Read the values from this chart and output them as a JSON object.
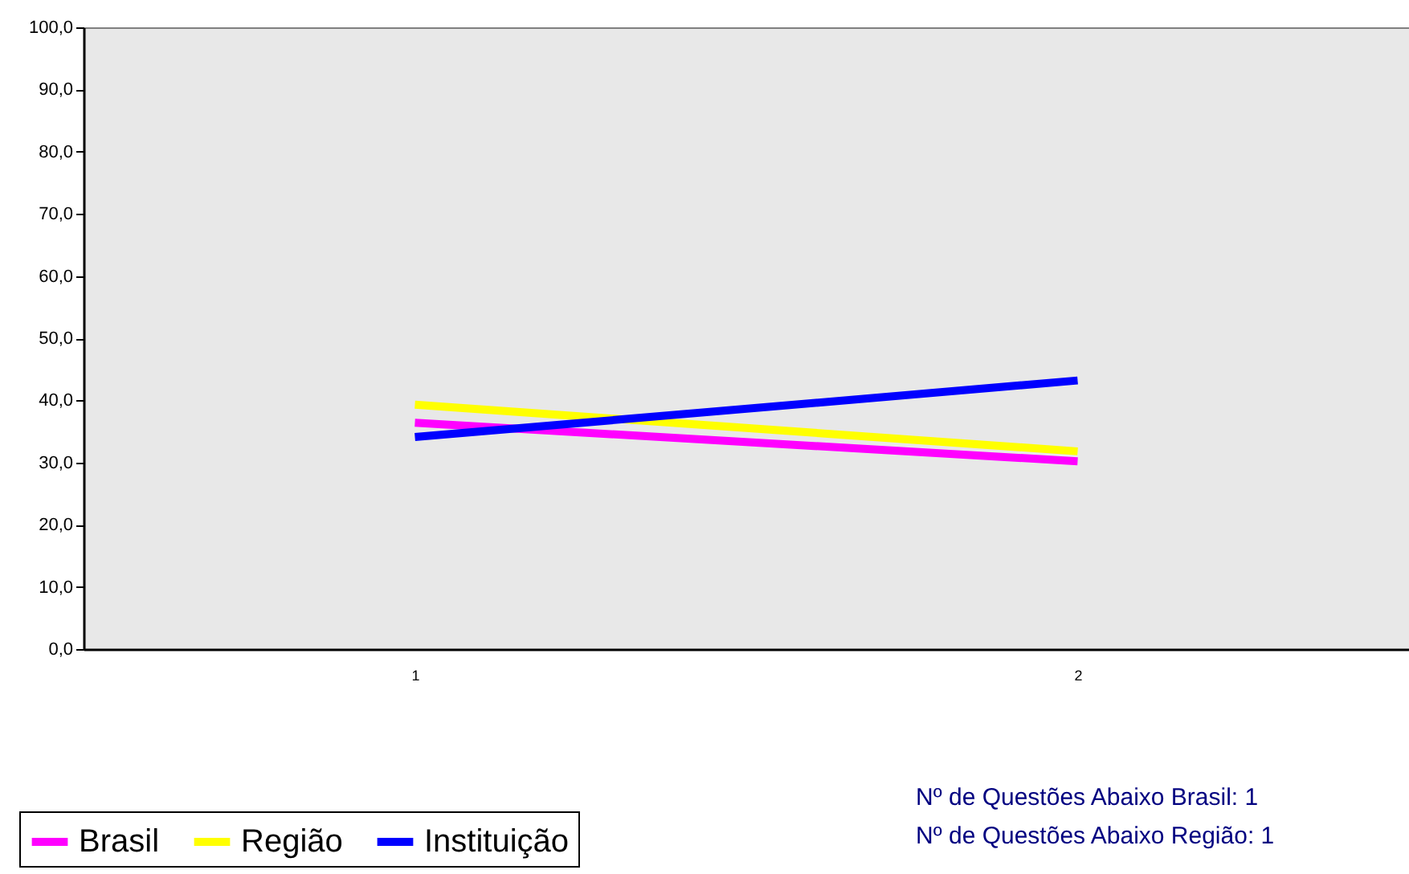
{
  "chart_data": {
    "type": "line",
    "categories": [
      "1",
      "2"
    ],
    "series": [
      {
        "name": "Brasil",
        "color": "#ff00ff",
        "values": [
          36.4,
          30.2
        ]
      },
      {
        "name": "Região",
        "color": "#ffff00",
        "values": [
          39.3,
          31.8
        ]
      },
      {
        "name": "Instituição",
        "color": "#0000ff",
        "values": [
          34.1,
          43.2
        ]
      }
    ],
    "ylim": [
      0,
      100
    ],
    "yticks": [
      {
        "value": 0,
        "label": "0,0"
      },
      {
        "value": 10,
        "label": "10,0"
      },
      {
        "value": 20,
        "label": "20,0"
      },
      {
        "value": 30,
        "label": "30,0"
      },
      {
        "value": 40,
        "label": "40,0"
      },
      {
        "value": 50,
        "label": "50,0"
      },
      {
        "value": 60,
        "label": "60,0"
      },
      {
        "value": 70,
        "label": "70,0"
      },
      {
        "value": 80,
        "label": "80,0"
      },
      {
        "value": 90,
        "label": "90,0"
      },
      {
        "value": 100,
        "label": "100,0"
      }
    ],
    "grid": false,
    "legend": "bottom left",
    "marker": "none",
    "line_style": "solid",
    "annotations": [
      "Nº de Questões Abaixo Brasil:  1",
      "Nº de Questões Abaixo Região: 1"
    ]
  }
}
